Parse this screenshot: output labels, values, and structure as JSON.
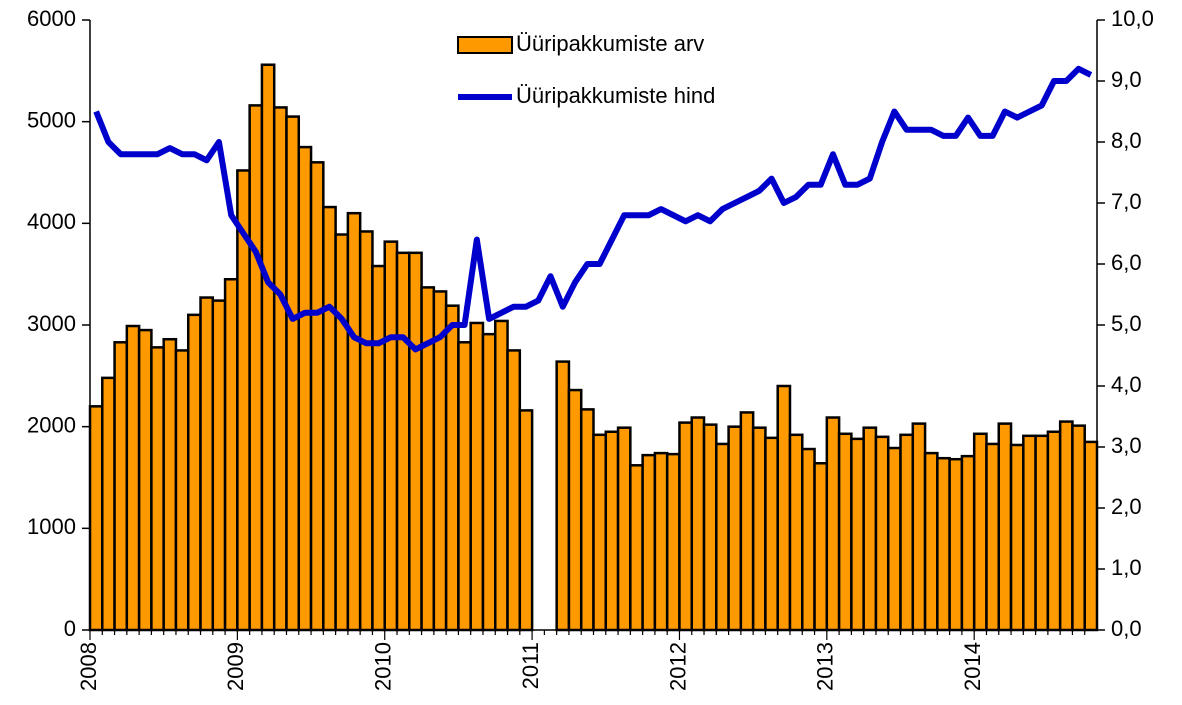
{
  "chart_data": {
    "type": "bar-line",
    "categories": [
      "2008",
      null,
      null,
      null,
      null,
      null,
      null,
      null,
      null,
      null,
      null,
      null,
      "2009",
      null,
      null,
      null,
      null,
      null,
      null,
      null,
      null,
      null,
      null,
      null,
      "2010",
      null,
      null,
      null,
      null,
      null,
      null,
      null,
      null,
      null,
      null,
      null,
      "2011",
      null,
      null,
      null,
      null,
      null,
      null,
      null,
      null,
      null,
      null,
      null,
      "2012",
      null,
      null,
      null,
      null,
      null,
      null,
      null,
      null,
      null,
      null,
      null,
      "2013",
      null,
      null,
      null,
      null,
      null,
      null,
      null,
      null,
      null,
      null,
      null,
      "2014",
      null,
      null,
      null,
      null,
      null,
      null,
      null,
      null,
      null
    ],
    "series": [
      {
        "name": "Üüripakkumiste arv",
        "type": "bar",
        "color": "#ff9900",
        "values": [
          2200,
          2480,
          2830,
          2990,
          2950,
          2780,
          2860,
          2750,
          3100,
          3270,
          3240,
          3450,
          4520,
          5160,
          5560,
          5140,
          5050,
          4750,
          4600,
          4160,
          3890,
          4100,
          3920,
          3580,
          3820,
          3710,
          3710,
          3370,
          3330,
          3190,
          2830,
          3020,
          2910,
          3040,
          2750,
          2160,
          null,
          null,
          2640,
          2360,
          2170,
          1920,
          1950,
          1990,
          1620,
          1720,
          1740,
          1730,
          2040,
          2090,
          2020,
          1830,
          2000,
          2140,
          1990,
          1890,
          2400,
          1920,
          1780,
          1640,
          2090,
          1930,
          1880,
          1990,
          1900,
          1790,
          1920,
          2030,
          1740,
          1690,
          1680,
          1710,
          1930,
          1830,
          2030,
          1820,
          1910,
          1910,
          1950,
          2050,
          2010,
          1850
        ]
      },
      {
        "name": "Üüripakkumiste hind",
        "type": "line",
        "axis": "y2",
        "color": "#0000cc",
        "values": [
          8.5,
          8.0,
          7.8,
          7.8,
          7.8,
          7.8,
          7.9,
          7.8,
          7.8,
          7.7,
          8.0,
          6.8,
          6.5,
          6.2,
          5.7,
          5.5,
          5.1,
          5.2,
          5.2,
          5.3,
          5.1,
          4.8,
          4.7,
          4.7,
          4.8,
          4.8,
          4.6,
          4.7,
          4.8,
          5.0,
          5.0,
          6.4,
          5.1,
          5.2,
          5.3,
          5.3,
          5.4,
          5.8,
          5.3,
          5.7,
          6.0,
          6.0,
          6.4,
          6.8,
          6.8,
          6.8,
          6.9,
          6.8,
          6.7,
          6.8,
          6.7,
          6.9,
          7.0,
          7.1,
          7.2,
          7.4,
          7.0,
          7.1,
          7.3,
          7.3,
          7.8,
          7.3,
          7.3,
          7.4,
          8.0,
          8.5,
          8.2,
          8.2,
          8.2,
          8.1,
          8.1,
          8.4,
          8.1,
          8.1,
          8.5,
          8.4,
          8.5,
          8.6,
          9.0,
          9.0,
          9.2,
          9.1
        ]
      }
    ],
    "ylim": [
      0,
      6000
    ],
    "yticks": [
      0,
      1000,
      2000,
      3000,
      4000,
      5000,
      6000
    ],
    "y2lim": [
      0,
      10
    ],
    "y2ticks": [
      {
        "value": 0,
        "label": "0,0"
      },
      {
        "value": 1,
        "label": "1,0"
      },
      {
        "value": 2,
        "label": "2,0"
      },
      {
        "value": 3,
        "label": "3,0"
      },
      {
        "value": 4,
        "label": "4,0"
      },
      {
        "value": 5,
        "label": "5,0"
      },
      {
        "value": 6,
        "label": "6,0"
      },
      {
        "value": 7,
        "label": "7,0"
      },
      {
        "value": 8,
        "label": "8,0"
      },
      {
        "value": 9,
        "label": "9,0"
      },
      {
        "value": 10,
        "label": "10,0"
      }
    ],
    "legend": "top-center"
  }
}
